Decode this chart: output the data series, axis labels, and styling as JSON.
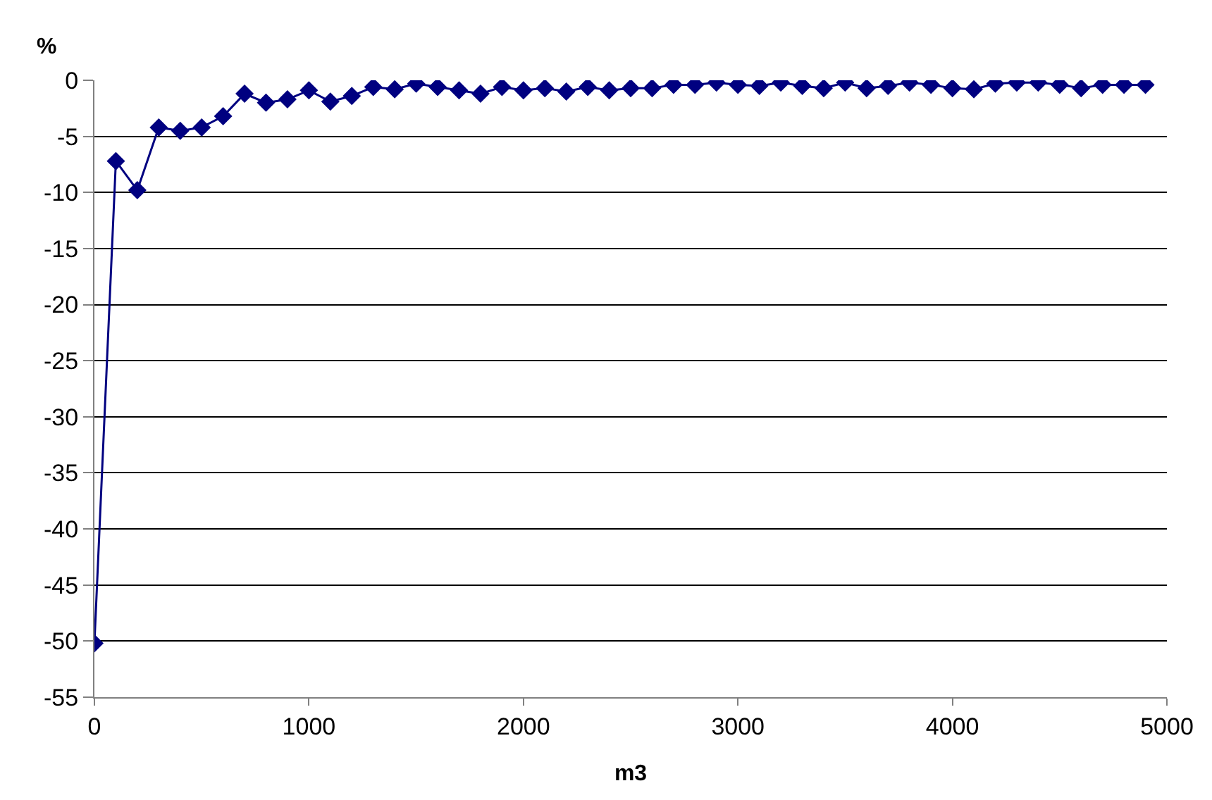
{
  "chart_data": {
    "type": "line",
    "xlabel": "m3",
    "ylabel": "%",
    "x": [
      0,
      100,
      200,
      300,
      400,
      500,
      600,
      700,
      800,
      900,
      1000,
      1100,
      1200,
      1300,
      1400,
      1500,
      1600,
      1700,
      1800,
      1900,
      2000,
      2100,
      2200,
      2300,
      2400,
      2500,
      2600,
      2700,
      2800,
      2900,
      3000,
      3100,
      3200,
      3300,
      3400,
      3500,
      3600,
      3700,
      3800,
      3900,
      4000,
      4100,
      4200,
      4300,
      4400,
      4500,
      4600,
      4700,
      4800,
      4900
    ],
    "series": [
      {
        "color": "#000080",
        "values": [
          -50.2,
          -7.2,
          -9.8,
          -4.2,
          -4.5,
          -4.2,
          -3.2,
          -1.2,
          -2.0,
          -1.7,
          -0.9,
          -1.9,
          -1.4,
          -0.6,
          -0.8,
          -0.3,
          -0.6,
          -0.9,
          -1.2,
          -0.6,
          -0.9,
          -0.7,
          -1.0,
          -0.6,
          -0.9,
          -0.7,
          -0.7,
          -0.4,
          -0.4,
          -0.2,
          -0.4,
          -0.5,
          -0.2,
          -0.5,
          -0.7,
          -0.2,
          -0.7,
          -0.5,
          -0.2,
          -0.4,
          -0.7,
          -0.8,
          -0.3,
          -0.2,
          -0.2,
          -0.4,
          -0.7,
          -0.4,
          -0.4,
          -0.4
        ]
      }
    ],
    "xlim": [
      0,
      5000
    ],
    "xticks": [
      0,
      1000,
      2000,
      3000,
      4000,
      5000
    ],
    "ylim": [
      -55,
      0
    ],
    "yticks": [
      0,
      -5,
      -10,
      -15,
      -20,
      -25,
      -30,
      -35,
      -40,
      -45,
      -50,
      -55
    ],
    "grid": "y",
    "marker": "diamond",
    "line_style": "solid"
  }
}
